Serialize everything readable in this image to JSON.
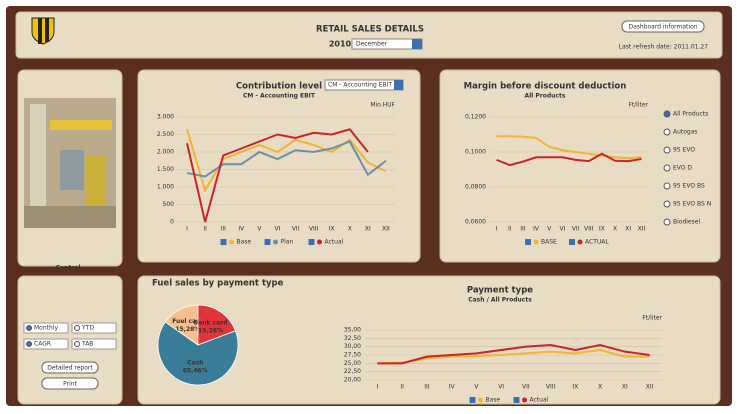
{
  "header": {
    "title": "RETAIL SALES DETAILS",
    "year": "2010",
    "month": "December",
    "info_button": "Dashboard information",
    "refresh": "Last refresh date: 2011.01.27"
  },
  "control": {
    "label": "Control",
    "options": [
      "Monthly",
      "YTD",
      "CAGR",
      "TAB"
    ],
    "buttons": [
      "Detailed report",
      "Print"
    ]
  },
  "chart_data": [
    {
      "type": "line",
      "title": "Contribution level",
      "subtitle": "CM - Accounting EBIT",
      "dropdown": "CM - Accounting EBIT",
      "unit": "Mio.HUF",
      "categories": [
        "I",
        "II",
        "III",
        "IV",
        "V",
        "VI",
        "VII",
        "VIII",
        "IX",
        "X",
        "XI",
        "XII"
      ],
      "series": [
        {
          "name": "Base",
          "color": "#f0b630",
          "values": [
            2650,
            900,
            1800,
            2000,
            2200,
            2000,
            2350,
            2200,
            2000,
            2350,
            1700,
            1450
          ]
        },
        {
          "name": "Plan",
          "color": "#6f8fa8",
          "values": [
            1400,
            1300,
            1650,
            1650,
            2000,
            1800,
            2050,
            2000,
            2100,
            2300,
            1350,
            1750
          ]
        },
        {
          "name": "Actual",
          "color": "#c8252a",
          "values": [
            2250,
            0,
            1900,
            2100,
            2300,
            2500,
            2400,
            2550,
            2500,
            2650,
            2000,
            null
          ]
        }
      ],
      "ylim": [
        0,
        3000
      ],
      "yticks": [
        {
          "value": 0,
          "label": "0"
        },
        {
          "value": 500,
          "label": "500"
        },
        {
          "value": 1000,
          "label": "1.000"
        },
        {
          "value": 1500,
          "label": "1.500"
        },
        {
          "value": 2000,
          "label": "2.000"
        },
        {
          "value": 2500,
          "label": "2.500"
        },
        {
          "value": 3000,
          "label": "3.000"
        }
      ]
    },
    {
      "type": "line",
      "title": "Margin before discount deduction",
      "subtitle": "All Products",
      "unit": "Ft/liter",
      "options": [
        "All Products",
        "Autogas",
        "95 EVO",
        "EVO D",
        "95 EVO BS",
        "95 EVO BS N",
        "Biodiesel"
      ],
      "categories": [
        "I",
        "II",
        "III",
        "IV",
        "V",
        "VI",
        "VII",
        "VIII",
        "IX",
        "X",
        "XI",
        "XII"
      ],
      "series": [
        {
          "name": "BASE",
          "color": "#f0b630",
          "values": [
            0.109,
            0.109,
            0.1088,
            0.108,
            0.103,
            0.101,
            0.1,
            0.099,
            0.098,
            0.097,
            0.0965,
            0.097
          ]
        },
        {
          "name": "ACTUAL",
          "color": "#c8252a",
          "values": [
            0.0955,
            0.0925,
            0.0945,
            0.097,
            0.097,
            0.097,
            0.0955,
            0.0948,
            0.099,
            0.095,
            0.0948,
            0.096
          ]
        }
      ],
      "ylim": [
        0.06,
        0.12
      ],
      "yticks": [
        {
          "value": 0.06,
          "label": "0,0600"
        },
        {
          "value": 0.08,
          "label": "0,0800"
        },
        {
          "value": 0.1,
          "label": "0,1000"
        },
        {
          "value": 0.12,
          "label": "0,1200"
        }
      ]
    },
    {
      "type": "pie",
      "title": "Fuel sales by payment type",
      "categories": [
        "Fuel card",
        "Bank card",
        "Cash"
      ],
      "values": [
        15.28,
        19.26,
        65.46
      ],
      "value_labels": [
        "15,28%",
        "19,26%",
        "65,46%"
      ],
      "colors": [
        "#f5c08c",
        "#e0353a",
        "#3a7d98"
      ]
    },
    {
      "type": "line",
      "title": "Payment type",
      "subtitle": "Cash / All Products",
      "unit": "Ft/liter",
      "categories": [
        "I",
        "II",
        "III",
        "IV",
        "V",
        "VI",
        "VII",
        "VIII",
        "IX",
        "X",
        "XI",
        "XII"
      ],
      "series": [
        {
          "name": "Base",
          "color": "#f0b630",
          "values": [
            25,
            25.2,
            26.5,
            27,
            27.2,
            27.5,
            28,
            28.5,
            28,
            29,
            27,
            27
          ]
        },
        {
          "name": "Actual",
          "color": "#c8252a",
          "values": [
            25,
            25,
            27,
            27.5,
            28,
            29,
            30,
            30.5,
            29,
            30.5,
            28.5,
            27.5
          ]
        }
      ],
      "ylim": [
        20,
        35
      ],
      "yticks": [
        {
          "value": 20,
          "label": "20,00"
        },
        {
          "value": 22.5,
          "label": "22,50"
        },
        {
          "value": 25,
          "label": "25,00"
        },
        {
          "value": 27.5,
          "label": "27,50"
        },
        {
          "value": 30,
          "label": "30,00"
        },
        {
          "value": 32.5,
          "label": "32,50"
        },
        {
          "value": 35,
          "label": "35,00"
        }
      ]
    }
  ]
}
